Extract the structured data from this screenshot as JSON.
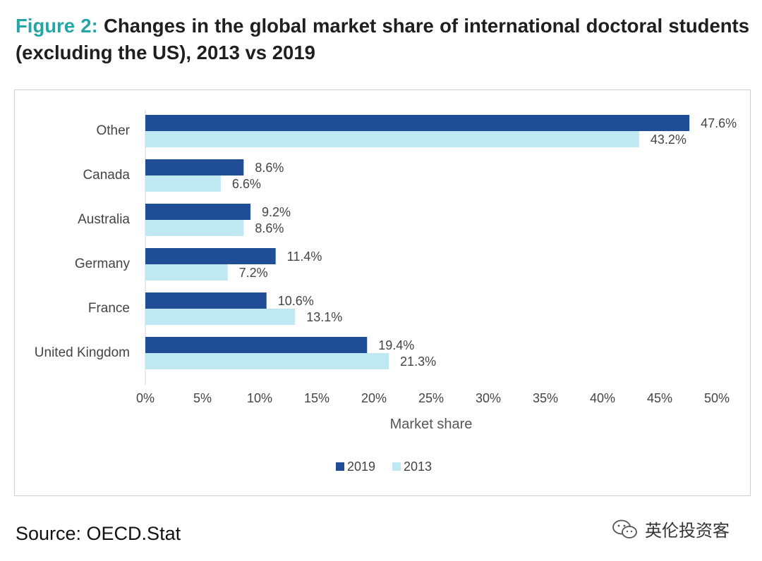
{
  "title": {
    "label": "Figure 2:",
    "text": "Changes in the global market share of international doctoral students (excluding the US), 2013 vs 2019"
  },
  "source": "Source: OECD.Stat",
  "watermark": {
    "text": "英伦投资客",
    "icon": "wechat-icon"
  },
  "chart_data": {
    "type": "bar",
    "orientation": "horizontal",
    "categories": [
      "Other",
      "Canada",
      "Australia",
      "Germany",
      "France",
      "United Kingdom"
    ],
    "series": [
      {
        "name": "2019",
        "color": "#1f4e96",
        "values": [
          47.6,
          8.6,
          9.2,
          11.4,
          10.6,
          19.4
        ],
        "labels": [
          "47.6%",
          "8.6%",
          "9.2%",
          "11.4%",
          "10.6%",
          "19.4%"
        ]
      },
      {
        "name": "2013",
        "color": "#bfe8f2",
        "values": [
          43.2,
          6.6,
          8.6,
          7.2,
          13.1,
          21.3
        ],
        "labels": [
          "43.2%",
          "6.6%",
          "8.6%",
          "7.2%",
          "13.1%",
          "21.3%"
        ]
      }
    ],
    "xlabel": "Market share",
    "ylabel": "",
    "xlim": [
      0,
      50
    ],
    "xticks": [
      "0%",
      "5%",
      "10%",
      "15%",
      "20%",
      "25%",
      "30%",
      "35%",
      "40%",
      "45%",
      "50%"
    ],
    "grid": false,
    "legend": "bottom-center"
  }
}
